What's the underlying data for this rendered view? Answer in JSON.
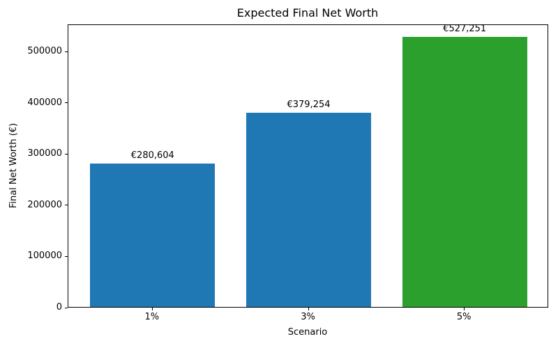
{
  "chart_data": {
    "type": "bar",
    "title": "Expected Final Net Worth",
    "xlabel": "Scenario",
    "ylabel": "Final Net Worth (€)",
    "categories": [
      "1%",
      "3%",
      "5%"
    ],
    "values": [
      280604,
      379254,
      527251
    ],
    "value_labels": [
      "€280,604",
      "€379,254",
      "€527,251"
    ],
    "bar_colors": [
      "#1f77b4",
      "#1f77b4",
      "#2ca02c"
    ],
    "ylim": [
      0,
      553614
    ],
    "yticks": [
      0,
      100000,
      200000,
      300000,
      400000,
      500000
    ],
    "ytick_labels": [
      "0",
      "100000",
      "200000",
      "300000",
      "400000",
      "500000"
    ],
    "grid": false,
    "legend": null,
    "background_color": "#ffffff",
    "spine_color": "#000000"
  }
}
